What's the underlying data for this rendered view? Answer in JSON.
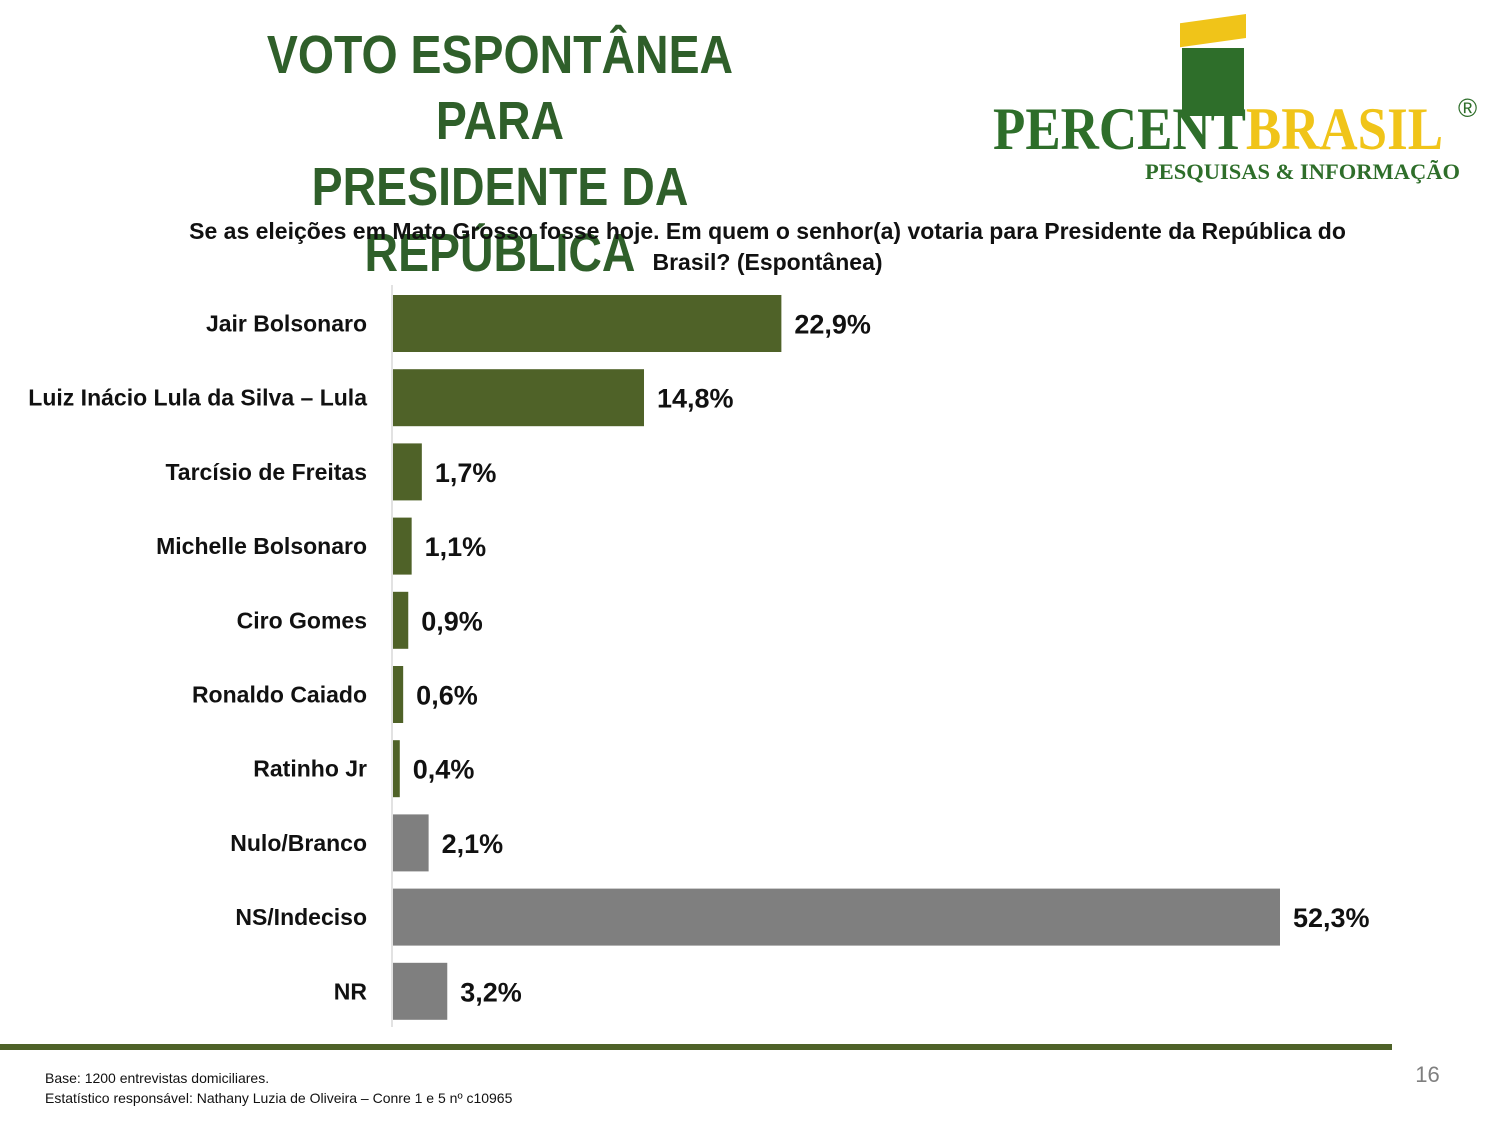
{
  "title_line1": "VOTO ESPONTÂNEA PARA",
  "title_line2": "PRESIDENTE DA REPÚBLICA",
  "logo": {
    "brand_part1": "PERCENT",
    "brand_part2": "BRASIL",
    "registered": "®",
    "tagline": "PESQUISAS & INFORMAÇÃO"
  },
  "question_line1": "Se as eleições em Mato Grosso fosse hoje. Em quem o senhor(a) votaria para Presidente da República do",
  "question_line2": "Brasil? (Espontânea)",
  "footer": {
    "base": "Base: 1200 entrevistas domiciliares.",
    "statistician": "Estatístico responsável: Nathany Luzia de Oliveira – Conre 1 e 5 nº c10965",
    "page": "16"
  },
  "colors": {
    "title": "#2f5f2a",
    "candidate_bar": "#4f6228",
    "other_bar": "#7f7f7f",
    "footer_line": "#4e6228",
    "logo_green": "#2e6e2a",
    "logo_yellow": "#f0c419"
  },
  "chart_data": {
    "type": "bar",
    "orientation": "horizontal",
    "categories": [
      "Jair Bolsonaro",
      "Luiz Inácio Lula da Silva – Lula",
      "Tarcísio de Freitas",
      "Michelle Bolsonaro",
      "Ciro Gomes",
      "Ronaldo Caiado",
      "Ratinho Jr",
      "Nulo/Branco",
      "NS/Indeciso",
      "NR"
    ],
    "values": [
      22.9,
      14.8,
      1.7,
      1.1,
      0.9,
      0.6,
      0.4,
      2.1,
      52.3,
      3.2
    ],
    "labels": [
      "22,9%",
      "14,8%",
      "1,7%",
      "1,1%",
      "0,9%",
      "0,6%",
      "0,4%",
      "2,1%",
      "52,3%",
      "3,2%"
    ],
    "bar_group": [
      "candidate",
      "candidate",
      "candidate",
      "candidate",
      "candidate",
      "candidate",
      "candidate",
      "other",
      "other",
      "other"
    ],
    "unit": "%",
    "xlim": [
      0,
      60
    ],
    "grid": false,
    "legend": "none"
  }
}
